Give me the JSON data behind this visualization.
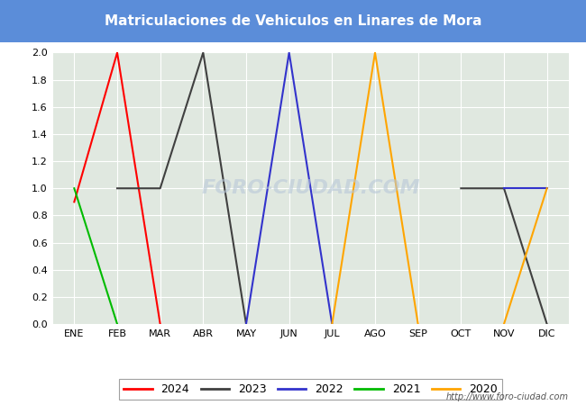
{
  "title": "Matriculaciones de Vehiculos en Linares de Mora",
  "title_bgcolor": "#5B8DD9",
  "title_fgcolor": "#FFFFFF",
  "months": [
    "ENE",
    "FEB",
    "MAR",
    "ABR",
    "MAY",
    "JUN",
    "JUL",
    "AGO",
    "SEP",
    "OCT",
    "NOV",
    "DIC"
  ],
  "series": {
    "2024": {
      "color": "#FF0000",
      "data": [
        0.9,
        2.0,
        0.0,
        null,
        null,
        null,
        null,
        null,
        null,
        null,
        null,
        null
      ]
    },
    "2023": {
      "color": "#404040",
      "data": [
        null,
        1.0,
        1.0,
        2.0,
        0.0,
        null,
        null,
        null,
        null,
        1.0,
        1.0,
        0.0
      ]
    },
    "2022": {
      "color": "#3333CC",
      "data": [
        null,
        null,
        null,
        null,
        0.0,
        2.0,
        0.0,
        null,
        null,
        null,
        1.0,
        1.0
      ]
    },
    "2021": {
      "color": "#00BB00",
      "data": [
        1.0,
        0.0,
        null,
        null,
        null,
        null,
        null,
        null,
        null,
        null,
        null,
        null
      ]
    },
    "2020": {
      "color": "#FFA500",
      "data": [
        null,
        null,
        null,
        null,
        null,
        null,
        0.0,
        2.0,
        0.0,
        null,
        0.0,
        1.0
      ]
    }
  },
  "ylim": [
    0.0,
    2.0
  ],
  "yticks": [
    0.0,
    0.2,
    0.4,
    0.6,
    0.8,
    1.0,
    1.2,
    1.4,
    1.6,
    1.8,
    2.0
  ],
  "legend_order": [
    "2024",
    "2023",
    "2022",
    "2021",
    "2020"
  ],
  "watermark": "FORO-CIUDAD.COM",
  "url": "http://www.foro-ciudad.com",
  "bg_plot": "#E0E8E0",
  "grid_color": "#FFFFFF",
  "title_fontsize": 11
}
